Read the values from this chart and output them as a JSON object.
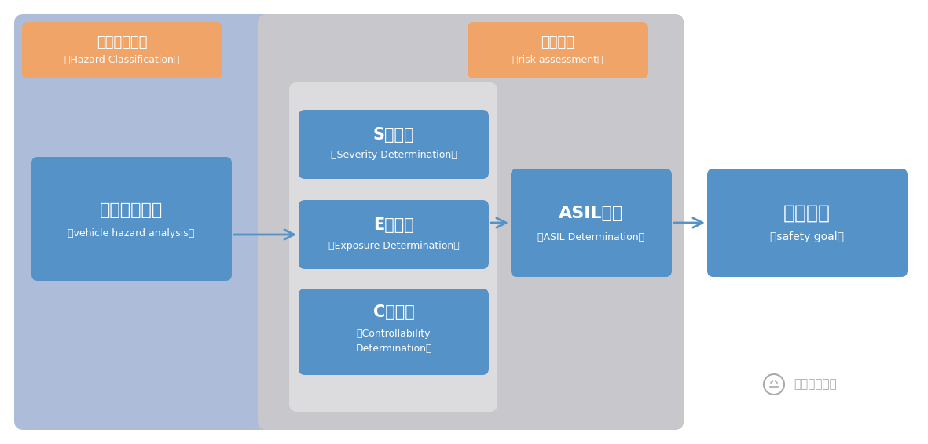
{
  "bg_color": "#ffffff",
  "outer_bg_color": "#adbcd8",
  "gray_bg_color": "#c8c8cc",
  "inner_white_bg": "#e4e4e6",
  "box_blue": "#5592c8",
  "box_orange": "#f0a468",
  "arrow_color": "#5592c8",
  "text_white": "#ffffff",
  "watermark_color": "#aaaaaa",
  "hazard_label_cn": "危害事件分类",
  "hazard_label_en": "（Hazard Classification）",
  "risk_label_cn": "风险评估",
  "risk_label_en": "（risk assessment）",
  "box1_cn": "整车危害分析",
  "box1_en": "（vehicle hazard analysis）",
  "box_s_cn": "S值评定",
  "box_s_en": "（Severity Determination）",
  "box_e_cn": "E值评定",
  "box_e_en": "（Exposure Determination）",
  "box_c_cn": "C值评定",
  "box_c_en1": "（Controllability",
  "box_c_en2": "Determination）",
  "box_asil_cn": "ASIL评定",
  "box_asil_en": "（ASIL Determination）",
  "box_goal_cn": "安全目标",
  "box_goal_en": "（safety goal）",
  "watermark": "焉知智能汽车"
}
